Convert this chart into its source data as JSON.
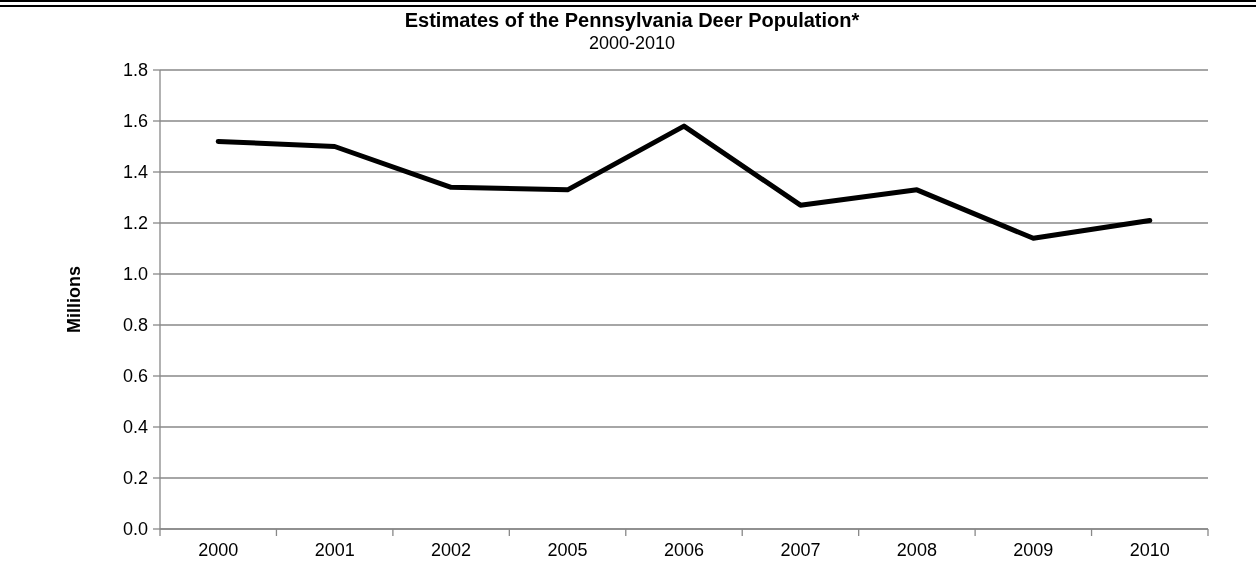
{
  "chart_data": {
    "type": "line",
    "title": "Estimates of the Pennsylvania Deer Population*",
    "subtitle": "2000-2010",
    "ylabel": "Millions",
    "categories": [
      "2000",
      "2001",
      "2002",
      "2005",
      "2006",
      "2007",
      "2008",
      "2009",
      "2010"
    ],
    "series": [
      {
        "color": "#000000",
        "values": [
          1.52,
          1.5,
          1.34,
          1.33,
          1.58,
          1.27,
          1.33,
          1.14,
          1.21
        ]
      }
    ],
    "ylim": [
      0,
      1.8
    ],
    "yticks": [
      {
        "value": 0,
        "label": "0.0"
      },
      {
        "value": 0.2,
        "label": "0.2"
      },
      {
        "value": 0.4,
        "label": "0.4"
      },
      {
        "value": 0.6,
        "label": "0.6"
      },
      {
        "value": 0.8,
        "label": "0.8"
      },
      {
        "value": 1,
        "label": "1.0"
      },
      {
        "value": 1.2,
        "label": "1.2"
      },
      {
        "value": 1.4,
        "label": "1.4"
      },
      {
        "value": 1.6,
        "label": "1.6"
      },
      {
        "value": 1.8,
        "label": "1.8"
      }
    ],
    "grid": "y",
    "marker": "none",
    "line_style": "solid"
  }
}
